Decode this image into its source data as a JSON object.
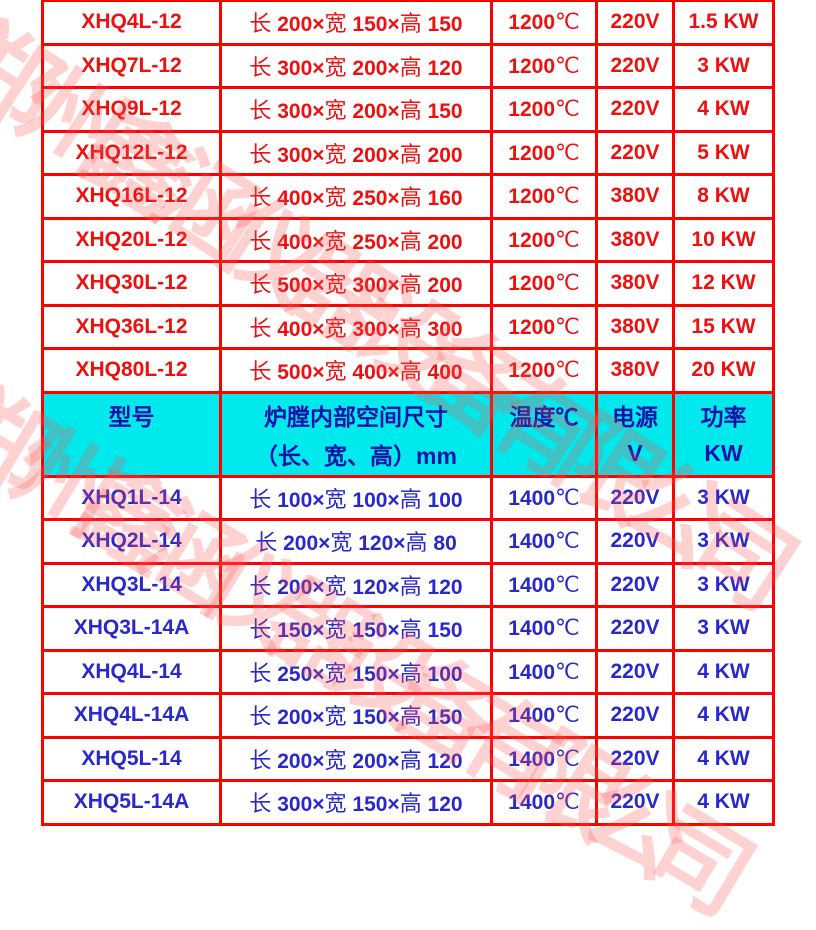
{
  "watermark": {
    "text": "郑州鑫涵仪器设备有限公司",
    "color": "#ff8c8c"
  },
  "colors": {
    "border_red": "#ff0000",
    "text_red_1200": "#ee0f0f",
    "text_blue_1400": "#2828cc",
    "header_text_navy": "#1212aa",
    "header_band_cyan": "#00e9ec",
    "background": "#ffffff"
  },
  "table": {
    "column_keys": [
      "model",
      "dims",
      "temp",
      "voltage",
      "power"
    ],
    "columns": [
      {
        "line1": "型号",
        "line2": ""
      },
      {
        "line1": "炉膛内部空间尺寸",
        "line2": "（长、宽、高）mm"
      },
      {
        "line1": "温度℃",
        "line2": ""
      },
      {
        "line1": "电源",
        "line2": "V"
      },
      {
        "line1": "功率",
        "line2": "KW"
      }
    ],
    "rows_1200": [
      [
        "XHQ4L-12",
        "长 200×宽 150×高 150",
        "1200℃",
        "220V",
        "1.5 KW"
      ],
      [
        "XHQ7L-12",
        "长 300×宽 200×高 120",
        "1200℃",
        "220V",
        "3 KW"
      ],
      [
        "XHQ9L-12",
        "长 300×宽 200×高 150",
        "1200℃",
        "220V",
        "4 KW"
      ],
      [
        "XHQ12L-12",
        "长 300×宽 200×高 200",
        "1200℃",
        "220V",
        "5 KW"
      ],
      [
        "XHQ16L-12",
        "长 400×宽 250×高 160",
        "1200℃",
        "380V",
        "8 KW"
      ],
      [
        "XHQ20L-12",
        "长 400×宽 250×高 200",
        "1200℃",
        "380V",
        "10 KW"
      ],
      [
        "XHQ30L-12",
        "长 500×宽 300×高 200",
        "1200℃",
        "380V",
        "12 KW"
      ],
      [
        "XHQ36L-12",
        "长 400×宽 300×高 300",
        "1200℃",
        "380V",
        "15 KW"
      ],
      [
        "XHQ80L-12",
        "长 500×宽 400×高 400",
        "1200℃",
        "380V",
        "20 KW"
      ]
    ],
    "rows_1400": [
      [
        "XHQ1L-14",
        "长 100×宽 100×高 100",
        "1400℃",
        "220V",
        "3 KW"
      ],
      [
        "XHQ2L-14",
        "长 200×宽 120×高 80",
        "1400℃",
        "220V",
        "3 KW"
      ],
      [
        "XHQ3L-14",
        "长 200×宽 120×高 120",
        "1400℃",
        "220V",
        "3 KW"
      ],
      [
        "XHQ3L-14A",
        "长 150×宽 150×高 150",
        "1400℃",
        "220V",
        "3 KW"
      ],
      [
        "XHQ4L-14",
        "长 250×宽 150×高 100",
        "1400℃",
        "220V",
        "4 KW"
      ],
      [
        "XHQ4L-14A",
        "长 200×宽 150×高 150",
        "1400℃",
        "220V",
        "4 KW"
      ],
      [
        "XHQ5L-14",
        "长 200×宽 200×高 120",
        "1400℃",
        "220V",
        "4 KW"
      ],
      [
        "XHQ5L-14A",
        "长 300×宽 150×高 120",
        "1400℃",
        "220V",
        "4 KW"
      ]
    ]
  }
}
